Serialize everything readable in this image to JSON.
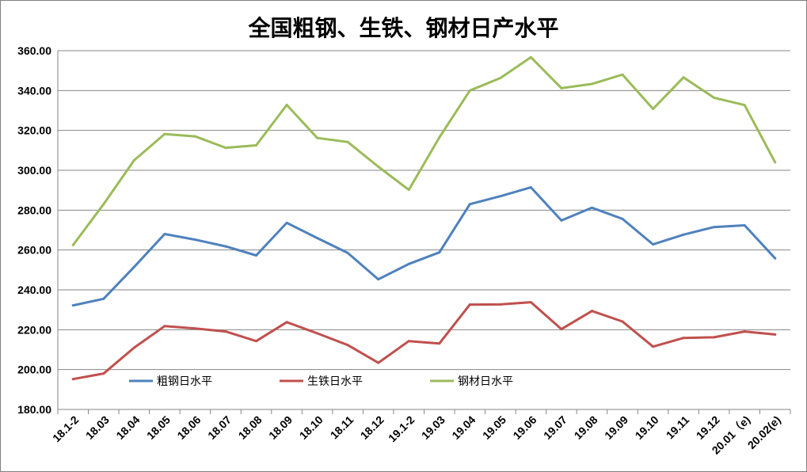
{
  "chart_data": {
    "type": "line",
    "title": "全国粗钢、生铁、钢材日产水平",
    "xlabel": "",
    "ylabel": "",
    "ylim": [
      180,
      360
    ],
    "yticks": [
      "180.00",
      "200.00",
      "220.00",
      "240.00",
      "260.00",
      "280.00",
      "300.00",
      "320.00",
      "340.00",
      "360.00"
    ],
    "grid": true,
    "legend_position": "inside-bottom-left",
    "categories": [
      "18.1-2",
      "18.03",
      "18.04",
      "18.05",
      "18.06",
      "18.07",
      "18.08",
      "18.09",
      "18.10",
      "18.11",
      "18.12",
      "19.1-2",
      "19.03",
      "19.04",
      "19.05",
      "19.06",
      "19.07",
      "19.08",
      "19.09",
      "19.10",
      "19.11",
      "19.12",
      "20.01（e)",
      "20.02(e)"
    ],
    "series": [
      {
        "name": "粗钢日水平",
        "color": "#4f81bd",
        "values": [
          232.2,
          235.5,
          251.5,
          268.0,
          265.2,
          261.8,
          257.3,
          273.6,
          266.0,
          258.5,
          245.3,
          253.0,
          258.8,
          283.0,
          287.0,
          291.4,
          274.8,
          281.2,
          275.6,
          262.8,
          267.7,
          271.5,
          272.4,
          255.8
        ]
      },
      {
        "name": "生铁日水平",
        "color": "#c0504d",
        "values": [
          195.2,
          198.0,
          211.0,
          221.8,
          220.6,
          219.1,
          214.3,
          223.8,
          218.2,
          212.3,
          203.4,
          214.3,
          213.1,
          232.6,
          232.7,
          233.8,
          220.3,
          229.4,
          224.1,
          211.5,
          215.9,
          216.2,
          219.1,
          217.6
        ]
      },
      {
        "name": "钢材日水平",
        "color": "#9bbb59",
        "values": [
          262.5,
          283.0,
          305.0,
          318.2,
          317.0,
          311.3,
          312.5,
          332.8,
          316.2,
          314.2,
          301.8,
          290.2,
          316.5,
          340.0,
          346.3,
          356.7,
          341.2,
          343.3,
          348.0,
          330.8,
          346.6,
          336.4,
          332.7,
          304.0
        ]
      }
    ]
  }
}
